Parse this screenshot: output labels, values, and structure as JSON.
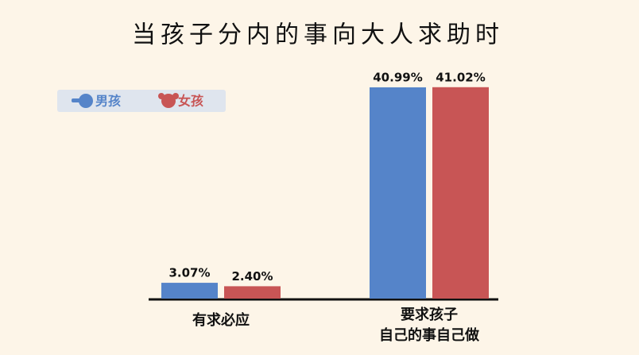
{
  "chart_data": {
    "type": "bar",
    "title": "当孩子分内的事向大人求助时",
    "categories": [
      "有求必应",
      "要求孩子\n自己的事自己做"
    ],
    "series": [
      {
        "name": "男孩",
        "color": "#5584c9",
        "values": [
          3.07,
          40.99
        ],
        "value_labels": [
          "3.07%",
          "40.99%"
        ]
      },
      {
        "name": "女孩",
        "color": "#c85555",
        "values": [
          2.4,
          41.02
        ],
        "value_labels": [
          "2.40%",
          "41.02%"
        ]
      }
    ]
  }
}
